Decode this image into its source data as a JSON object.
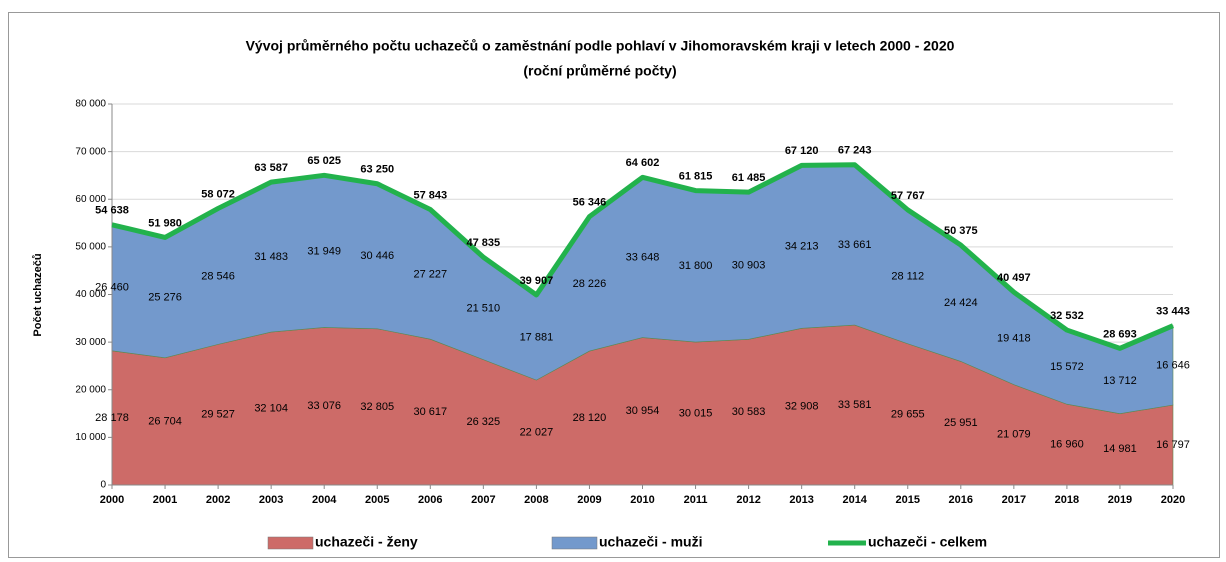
{
  "chart_data": {
    "type": "area",
    "title": "Vývoj  průměrného počtu uchazečů o zaměstnání podle pohlaví v Jihomoravském kraji v letech 2000 - 2020",
    "subtitle": "(roční průměrné počty)",
    "y_label": "Počet uchazečů",
    "categories": [
      "2000",
      "2001",
      "2002",
      "2003",
      "2004",
      "2005",
      "2006",
      "2007",
      "2008",
      "2009",
      "2010",
      "2011",
      "2012",
      "2013",
      "2014",
      "2015",
      "2016",
      "2017",
      "2018",
      "2019",
      "2020"
    ],
    "series": [
      {
        "name": "uchazeči - ženy",
        "color": "#cd6b68",
        "type": "area",
        "values": [
          28178,
          26704,
          29527,
          32104,
          33076,
          32805,
          30617,
          26325,
          22027,
          28120,
          30954,
          30015,
          30583,
          32908,
          33581,
          29655,
          25951,
          21079,
          16960,
          14981,
          16797
        ],
        "value_labels": [
          "28 178",
          "26 704",
          "29 527",
          "32 104",
          "33 076",
          "32 805",
          "30 617",
          "26 325",
          "22 027",
          "28 120",
          "30 954",
          "30 015",
          "30 583",
          "32 908",
          "33 581",
          "29 655",
          "25 951",
          "21 079",
          "16 960",
          "14 981",
          "16 797"
        ]
      },
      {
        "name": "uchazeči - muži",
        "color": "#7399cc",
        "type": "area",
        "values": [
          26460,
          25276,
          28546,
          31483,
          31949,
          30446,
          27227,
          21510,
          17881,
          28226,
          33648,
          31800,
          30903,
          34213,
          33661,
          28112,
          24424,
          19418,
          15572,
          13712,
          16646
        ],
        "value_labels": [
          "26 460",
          "25 276",
          "28 546",
          "31 483",
          "31 949",
          "30 446",
          "27 227",
          "21 510",
          "17 881",
          "28 226",
          "33 648",
          "31 800",
          "30 903",
          "34 213",
          "33 661",
          "28 112",
          "24 424",
          "19 418",
          "15 572",
          "13 712",
          "16 646"
        ]
      },
      {
        "name": "uchazeči - celkem",
        "color": "#22b24c",
        "type": "line",
        "values": [
          54638,
          51980,
          58072,
          63587,
          65025,
          63250,
          57843,
          47835,
          39907,
          56346,
          64602,
          61815,
          61485,
          67120,
          67243,
          57767,
          50375,
          40497,
          32532,
          28693,
          33443
        ],
        "value_labels": [
          "54 638",
          "51 980",
          "58 072",
          "63 587",
          "65 025",
          "63 250",
          "57 843",
          "47 835",
          "39 907",
          "56 346",
          "64 602",
          "61 815",
          "61 485",
          "67 120",
          "67 243",
          "57 767",
          "50 375",
          "40 497",
          "32 532",
          "28 693",
          "33 443"
        ]
      }
    ],
    "ylim": [
      0,
      80000
    ],
    "yticks": [
      0,
      {
        "value": 10000,
        "label": "10 000"
      },
      {
        "value": 20000,
        "label": "20 000"
      },
      {
        "value": 30000,
        "label": "30 000"
      },
      {
        "value": 40000,
        "label": "40 000"
      },
      {
        "value": 50000,
        "label": "50 000"
      },
      {
        "value": 60000,
        "label": "60 000"
      },
      {
        "value": 70000,
        "label": "70 000"
      },
      {
        "value": 80000,
        "label": "80 000"
      }
    ],
    "grid": true,
    "legend": "bottom"
  }
}
